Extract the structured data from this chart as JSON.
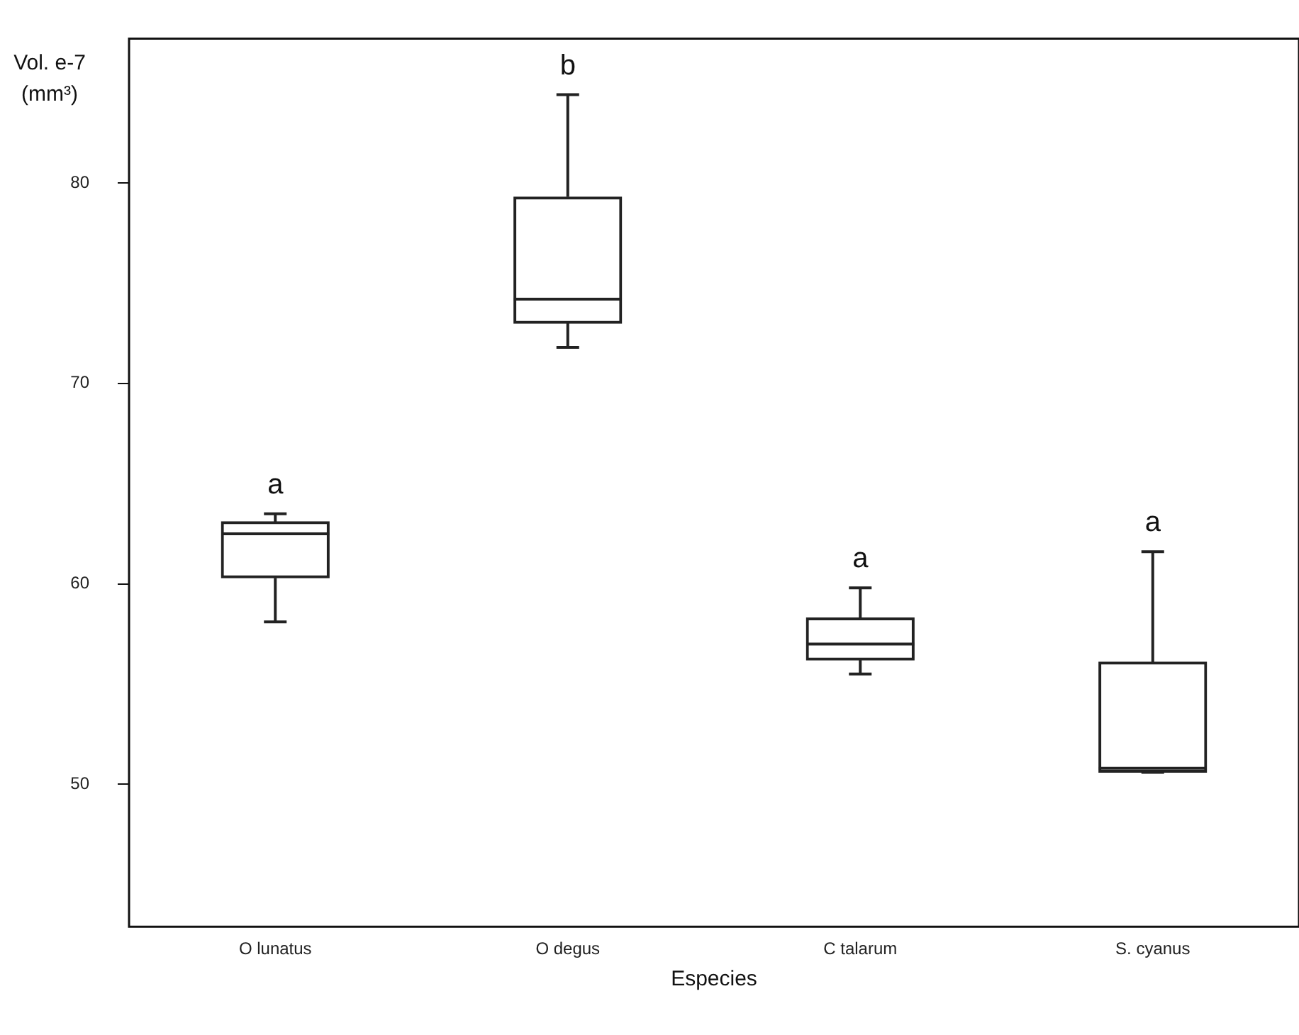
{
  "chart_data": {
    "type": "box",
    "xlabel": "Especies",
    "ylabel": "Vol. e-7 (mm³)",
    "categories": [
      "O lunatus",
      "O degus",
      "C talarum",
      "S. cyanus"
    ],
    "boxes": [
      {
        "low": 58.1,
        "q1": 60.3,
        "median": 62.5,
        "q3": 63.1,
        "high": 63.5
      },
      {
        "low": 71.8,
        "q1": 73.0,
        "median": 74.2,
        "q3": 79.3,
        "high": 84.4
      },
      {
        "low": 55.5,
        "q1": 56.2,
        "median": 57.0,
        "q3": 58.3,
        "high": 59.8
      },
      {
        "low": 50.6,
        "q1": 50.6,
        "median": 50.8,
        "q3": 56.1,
        "high": 61.6
      }
    ],
    "color": "#222222",
    "ylim": [
      42.9,
      87.2
    ],
    "yticks": [
      50,
      60,
      70,
      80
    ],
    "grid": false,
    "annotations": [
      "a",
      "b",
      "a",
      "a"
    ]
  }
}
